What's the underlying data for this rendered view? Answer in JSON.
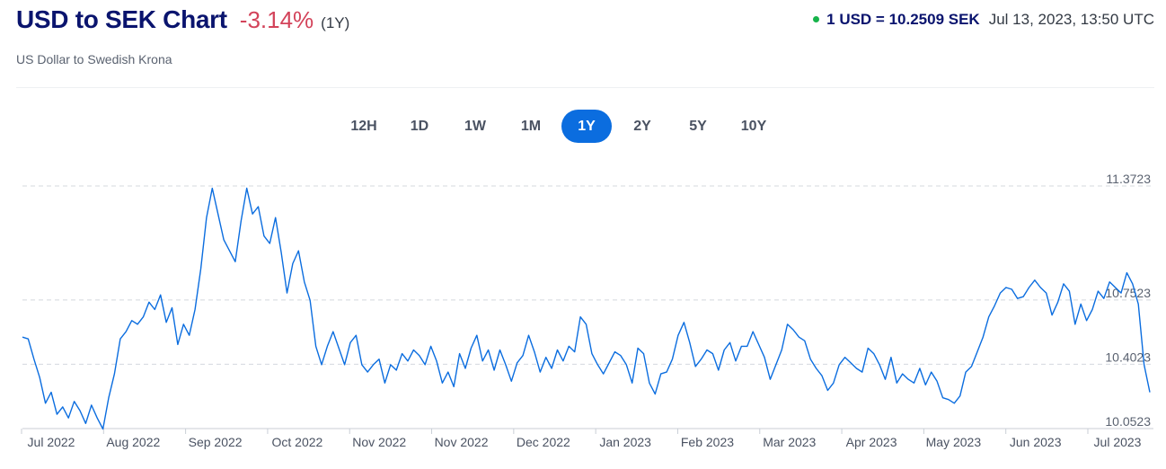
{
  "header": {
    "title": "USD to SEK Chart",
    "change": "-3.14%",
    "period": "(1Y)",
    "subtitle": "US Dollar to Swedish Krona"
  },
  "rate": {
    "value": "1 USD = 10.2509 SEK",
    "timestamp": "Jul 13, 2023, 13:50 UTC",
    "status_color": "#16b34a"
  },
  "tabs": [
    "12H",
    "1D",
    "1W",
    "1M",
    "1Y",
    "2Y",
    "5Y",
    "10Y"
  ],
  "active_tab": "1Y",
  "colors": {
    "line": "#0b6ddf",
    "accent": "#0b6ddf",
    "negative": "#d3435a",
    "title": "#0a146e"
  },
  "chart_data": {
    "type": "line",
    "title": "USD to SEK Chart",
    "ylim": [
      10.0523,
      11.3723
    ],
    "y_ticks": [
      "11.3723",
      "10.7523",
      "10.4023",
      "10.0523"
    ],
    "y_tick_values": [
      11.3723,
      10.7523,
      10.4023,
      10.0523
    ],
    "grid": "horizontal dashed",
    "x_labels": [
      "Jul 2022",
      "Aug 2022",
      "Sep 2022",
      "Oct 2022",
      "Nov 2022",
      "Nov 2022",
      "Dec 2022",
      "Jan 2023",
      "Feb 2023",
      "Mar 2023",
      "Apr 2023",
      "May 2023",
      "Jun 2023",
      "Jul 2023"
    ],
    "series": [
      {
        "values": [
          10.55,
          10.54,
          10.43,
          10.33,
          10.19,
          10.25,
          10.13,
          10.17,
          10.11,
          10.2,
          10.15,
          10.08,
          10.18,
          10.11,
          10.05,
          10.22,
          10.35,
          10.54,
          10.58,
          10.64,
          10.62,
          10.66,
          10.74,
          10.7,
          10.78,
          10.63,
          10.71,
          10.51,
          10.62,
          10.56,
          10.7,
          10.92,
          11.2,
          11.36,
          11.22,
          11.08,
          11.02,
          10.96,
          11.18,
          11.36,
          11.22,
          11.26,
          11.1,
          11.06,
          11.2,
          11.01,
          10.79,
          10.95,
          11.02,
          10.85,
          10.75,
          10.5,
          10.4,
          10.5,
          10.58,
          10.49,
          10.4,
          10.52,
          10.56,
          10.4,
          10.36,
          10.4,
          10.43,
          10.3,
          10.4,
          10.37,
          10.46,
          10.42,
          10.48,
          10.45,
          10.4,
          10.5,
          10.42,
          10.3,
          10.36,
          10.28,
          10.46,
          10.38,
          10.49,
          10.56,
          10.42,
          10.48,
          10.37,
          10.48,
          10.4,
          10.31,
          10.41,
          10.45,
          10.56,
          10.47,
          10.36,
          10.44,
          10.38,
          10.48,
          10.42,
          10.5,
          10.47,
          10.66,
          10.62,
          10.46,
          10.4,
          10.35,
          10.41,
          10.47,
          10.45,
          10.4,
          10.3,
          10.49,
          10.46,
          10.3,
          10.24,
          10.35,
          10.36,
          10.43,
          10.56,
          10.63,
          10.52,
          10.39,
          10.43,
          10.48,
          10.46,
          10.37,
          10.48,
          10.52,
          10.42,
          10.5,
          10.5,
          10.58,
          10.51,
          10.44,
          10.32,
          10.4,
          10.48,
          10.62,
          10.59,
          10.55,
          10.53,
          10.43,
          10.38,
          10.34,
          10.26,
          10.3,
          10.4,
          10.44,
          10.41,
          10.38,
          10.36,
          10.49,
          10.46,
          10.4,
          10.32,
          10.44,
          10.3,
          10.35,
          10.32,
          10.3,
          10.38,
          10.29,
          10.36,
          10.31,
          10.22,
          10.21,
          10.19,
          10.23,
          10.36,
          10.39,
          10.47,
          10.55,
          10.66,
          10.72,
          10.79,
          10.82,
          10.81,
          10.76,
          10.77,
          10.82,
          10.86,
          10.82,
          10.79,
          10.67,
          10.74,
          10.84,
          10.8,
          10.62,
          10.73,
          10.64,
          10.7,
          10.8,
          10.76,
          10.85,
          10.82,
          10.79,
          10.9,
          10.84,
          10.73,
          10.4,
          10.25
        ]
      }
    ]
  }
}
